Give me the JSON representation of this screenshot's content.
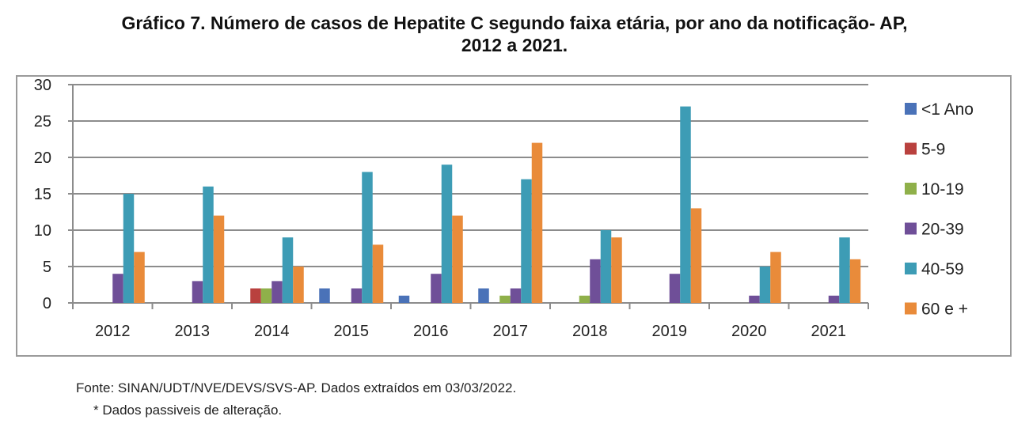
{
  "title_line1": "Gráfico 7. Número de casos de Hepatite C segundo faixa etária, por ano da notificação- AP,",
  "title_line2": "2012 a 2021.",
  "footer": {
    "source": "Fonte: SINAN/UDT/NVE/DEVS/SVS-AP. Dados extraídos em 03/03/2022.",
    "note": "* Dados passiveis de alteração."
  },
  "chart_data": {
    "type": "bar",
    "title": "Gráfico 7. Número de casos de Hepatite C segundo faixa etária, por ano da notificação- AP, 2012 a 2021.",
    "xlabel": "",
    "ylabel": "",
    "ylim": [
      0,
      30
    ],
    "yticks": [
      0,
      5,
      10,
      15,
      20,
      25,
      30
    ],
    "grid": true,
    "legend_position": "right",
    "categories": [
      "2012",
      "2013",
      "2014",
      "2015",
      "2016",
      "2017",
      "2018",
      "2019",
      "2020",
      "2021"
    ],
    "series": [
      {
        "name": "<1 Ano",
        "color": "#4a72b8",
        "values": [
          0,
          0,
          0,
          2,
          1,
          2,
          0,
          0,
          0,
          0
        ]
      },
      {
        "name": "5-9",
        "color": "#b9413e",
        "values": [
          0,
          0,
          2,
          0,
          0,
          0,
          0,
          0,
          0,
          0
        ]
      },
      {
        "name": "10-19",
        "color": "#8fb04a",
        "values": [
          0,
          0,
          2,
          0,
          0,
          1,
          1,
          0,
          0,
          0
        ]
      },
      {
        "name": "20-39",
        "color": "#6f4f98",
        "values": [
          4,
          3,
          3,
          2,
          4,
          2,
          6,
          4,
          1,
          1
        ]
      },
      {
        "name": "40-59",
        "color": "#3d9cb5",
        "values": [
          15,
          16,
          9,
          18,
          19,
          17,
          10,
          27,
          5,
          9
        ]
      },
      {
        "name": "60 e +",
        "color": "#e98b3a",
        "values": [
          7,
          12,
          5,
          8,
          12,
          22,
          9,
          13,
          7,
          6
        ]
      }
    ]
  }
}
